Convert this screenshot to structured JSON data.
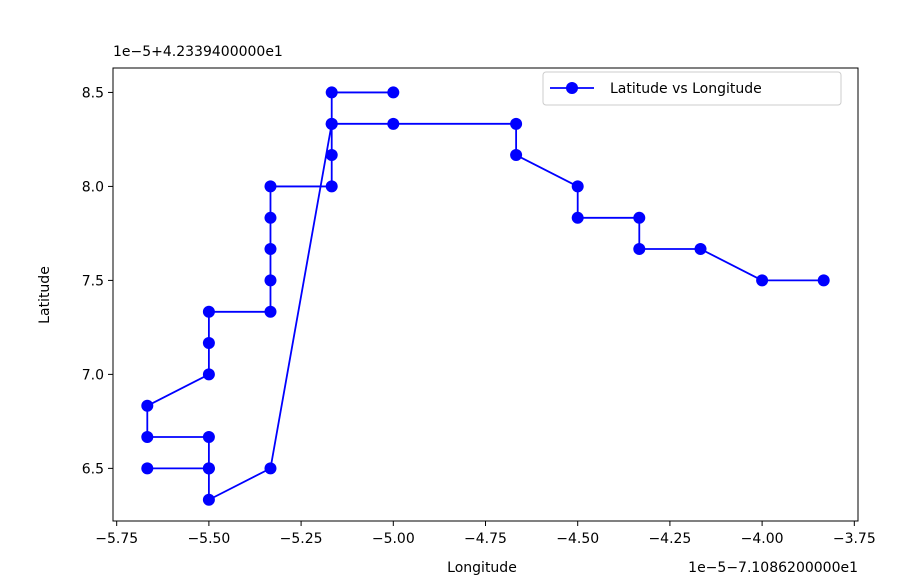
{
  "chart_data": {
    "type": "line",
    "title": "",
    "xlabel": "Longitude",
    "ylabel": "Latitude",
    "x_offset_text": "1e−5−7.1086200000e1",
    "y_offset_text": "1e−5+4.2339400000e1",
    "xlim": [
      -5.76,
      -3.74
    ],
    "ylim": [
      6.22,
      8.63
    ],
    "x_ticks": [
      -5.75,
      -5.5,
      -5.25,
      -5.0,
      -4.75,
      -4.5,
      -4.25,
      -4.0,
      -3.75
    ],
    "x_tick_labels": [
      "−5.75",
      "−5.50",
      "−5.25",
      "−5.00",
      "−4.75",
      "−4.50",
      "−4.25",
      "−4.00",
      "−3.75"
    ],
    "y_ticks": [
      6.5,
      7.0,
      7.5,
      8.0,
      8.5
    ],
    "y_tick_labels": [
      "6.5",
      "7.0",
      "7.5",
      "8.0",
      "8.5"
    ],
    "grid": false,
    "legend_position": "top-right",
    "colors": {
      "series": "#0000ff"
    },
    "series": [
      {
        "name": "Latitude vs Longitude",
        "color": "#0000ff",
        "marker": "circle",
        "x": [
          -5.0,
          -5.167,
          -5.167,
          -5.167,
          -5.167,
          -5.333,
          -5.333,
          -5.333,
          -5.333,
          -5.333,
          -5.5,
          -5.5,
          -5.5,
          -5.667,
          -5.667,
          -5.5,
          -5.5,
          -5.667,
          -5.5,
          -5.5,
          -5.333,
          -5.167,
          -5.0,
          -4.667,
          -4.667,
          -4.5,
          -4.5,
          -4.333,
          -4.333,
          -4.167,
          -4.0,
          -3.833
        ],
        "y": [
          8.5,
          8.5,
          8.333,
          8.167,
          8.0,
          8.0,
          7.833,
          7.667,
          7.5,
          7.333,
          7.333,
          7.167,
          7.0,
          6.833,
          6.667,
          6.667,
          6.5,
          6.5,
          6.5,
          6.333,
          6.5,
          8.333,
          8.333,
          8.333,
          8.167,
          8.0,
          7.833,
          7.833,
          7.667,
          7.667,
          7.5,
          7.5
        ]
      }
    ]
  }
}
